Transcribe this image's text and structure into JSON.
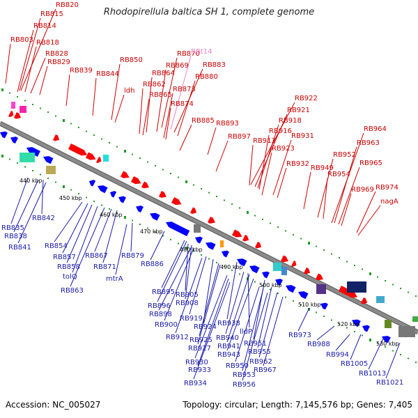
{
  "title": "Rhodopirellula baltica SH 1, complete genome",
  "footer": {
    "accession": "Accession: NC_005027",
    "summary": "Topology: circular; Length: 7,145,576 bp; Genes: 7,405"
  },
  "colors": {
    "forward_label": "#cc0000",
    "reverse_label": "#1a1aaa",
    "rna_label": "#ee82c8",
    "forward_gene": "#ff0000",
    "reverse_gene": "#0000ff",
    "backbone": "#8a8a8a",
    "tick": "#229922"
  },
  "scale_labels": [
    "440 kbp",
    "450 kbp",
    "460 kbp",
    "470 kbp",
    "480 kbp",
    "490 kbp",
    "500 kbp",
    "510 kbp",
    "520 kbp",
    "530 kbp"
  ],
  "forward_labels": [
    "RB820",
    "RB815",
    "RB814",
    "RB803",
    "RB818",
    "RB828",
    "RB829",
    "RB839",
    "RB844",
    "RB850",
    "ldh",
    "RB870",
    "RBt14",
    "RB869",
    "RB883",
    "RB864",
    "RB880",
    "RB862",
    "RB865",
    "RB873",
    "RB874",
    "RB885",
    "RB893",
    "RB897",
    "RB922",
    "RB921",
    "RB918",
    "RB916",
    "RB931",
    "RB913",
    "RB923",
    "RB932",
    "RB949",
    "RB964",
    "RB963",
    "RB952",
    "RB965",
    "RB954",
    "RB969",
    "RB974",
    "nagA"
  ],
  "rna_labels": [
    "RBt14"
  ],
  "reverse_labels": [
    "RB835",
    "RB842",
    "RB838",
    "RB841",
    "RB854",
    "RB857",
    "RB858",
    "tolQ",
    "RB863",
    "RB867",
    "RB871",
    "RB879",
    "mtrA",
    "RB886",
    "RB895",
    "RB896",
    "RB905",
    "RB908",
    "RB898",
    "RB900",
    "RB919",
    "RB912",
    "RB924",
    "RB938",
    "RB925",
    "RB927",
    "RB940",
    "lldP",
    "RB941",
    "RB951",
    "RB943",
    "RB955",
    "RB930",
    "RB950",
    "RB962",
    "RB933",
    "RB953",
    "RB967",
    "RB934",
    "RB956",
    "RB973",
    "RB988",
    "RB994",
    "RB1005",
    "RB1013",
    "RB1021"
  ]
}
